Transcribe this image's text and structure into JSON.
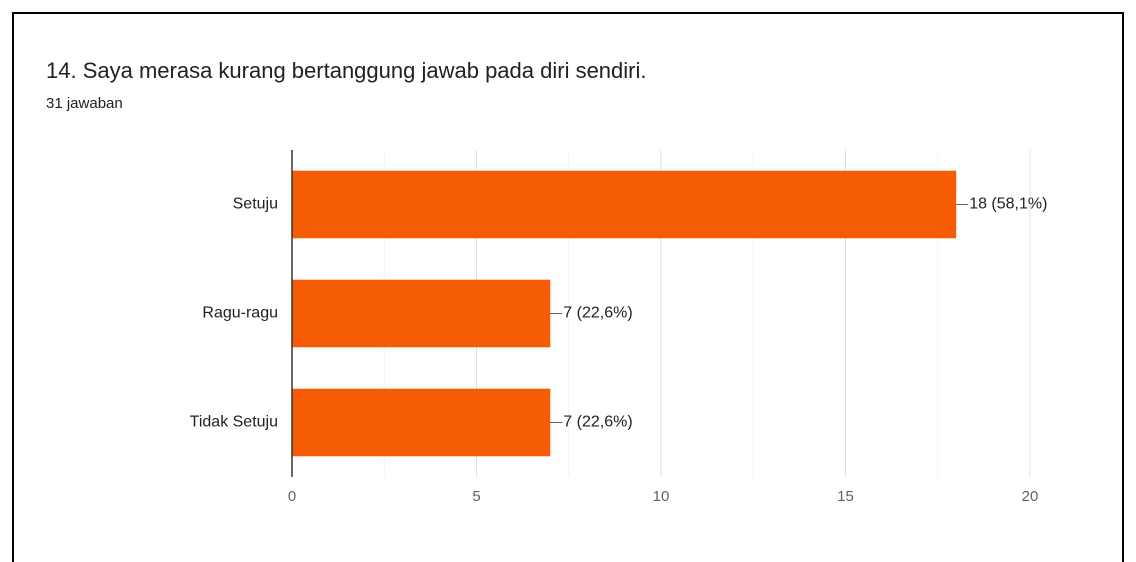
{
  "chart_data": {
    "type": "bar",
    "orientation": "horizontal",
    "title": "14. Saya merasa kurang bertanggung jawab pada diri sendiri.",
    "subtitle": "31 jawaban",
    "categories": [
      "Setuju",
      "Ragu-ragu",
      "Tidak Setuju"
    ],
    "values": [
      18,
      7,
      7
    ],
    "value_labels": [
      "18 (58,1%)",
      "7 (22,6%)",
      "7 (22,6%)"
    ],
    "color": "#f65c03",
    "xlim": [
      0,
      20
    ],
    "xticks": [
      0,
      5,
      10,
      15,
      20
    ],
    "minor_xticks": [
      2.5,
      7.5,
      12.5,
      17.5
    ],
    "grid": true
  }
}
